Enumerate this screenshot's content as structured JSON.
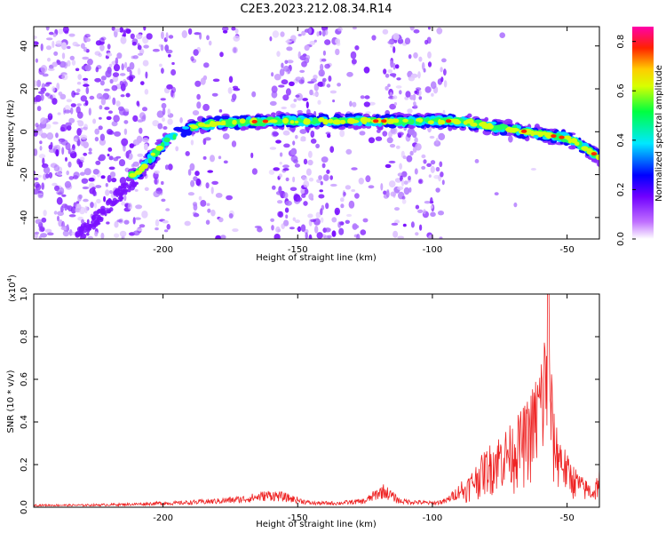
{
  "title": "C2E3.2023.212.08.34.R14",
  "chart_data": [
    {
      "type": "heatmap",
      "xlabel": "Height of straight line (km)",
      "ylabel": "Frequency (Hz)",
      "xlim": [
        -248,
        -38
      ],
      "ylim": [
        -50,
        49
      ],
      "xticks": [
        -200,
        -150,
        -100,
        -50
      ],
      "yticks": [
        -40,
        -20,
        0,
        20,
        40
      ],
      "colorbar": {
        "label": "Normalized spectral amplitude",
        "range": [
          0,
          0.86
        ],
        "ticks": [
          "0.0",
          "0.2",
          "0.4",
          "0.6",
          "0.8"
        ],
        "colormap": [
          "#ffffff",
          "#8a00ff",
          "#0000ff",
          "#00e5ff",
          "#00ff44",
          "#ffff00",
          "#ff2200",
          "#ff00aa"
        ]
      },
      "ridge": {
        "description_points_x": [
          -210,
          -203,
          -198,
          -190,
          -180,
          -160,
          -140,
          -120,
          -100,
          -90,
          -80,
          -70,
          -60,
          -50,
          -45,
          -38
        ],
        "description_points_y": [
          -20,
          -10,
          -3,
          2,
          4,
          5,
          5,
          5,
          5,
          5,
          3,
          1,
          -1,
          -3,
          -6,
          -12
        ],
        "peak_amplitude": 0.86
      }
    },
    {
      "type": "line",
      "xlabel": "Height of straight line (km)",
      "ylabel": "SNR (10 * v/v)",
      "y_multiplier": "(x10",
      "y_multiplier_exp": "4",
      "y_multiplier_close": ")",
      "xlim": [
        -248,
        -38
      ],
      "ylim": [
        0,
        1.0
      ],
      "xticks": [
        -200,
        -150,
        -100,
        -50
      ],
      "yticks": [
        "0.0",
        "0.2",
        "0.4",
        "0.6",
        "0.8",
        "1.0"
      ],
      "line_color": "#ee2222",
      "series": [
        {
          "x": [
            -248,
            -230,
            -210,
            -200,
            -195,
            -180,
            -170,
            -160,
            -155,
            -145,
            -135,
            -125,
            -120,
            -118,
            -112,
            -100,
            -95,
            -90,
            -85,
            -80,
            -75,
            -70,
            -65,
            -62,
            -59,
            -57,
            -55,
            -50,
            -45,
            -40,
            -38
          ],
          "y": [
            0.01,
            0.01,
            0.015,
            0.02,
            0.02,
            0.03,
            0.04,
            0.06,
            0.05,
            0.02,
            0.02,
            0.03,
            0.07,
            0.08,
            0.03,
            0.02,
            0.03,
            0.08,
            0.18,
            0.28,
            0.35,
            0.4,
            0.5,
            0.6,
            0.78,
            1.0,
            0.45,
            0.25,
            0.15,
            0.1,
            0.2
          ]
        }
      ]
    }
  ]
}
